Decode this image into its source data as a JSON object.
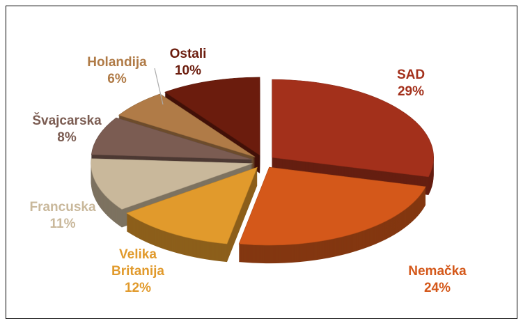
{
  "chart_data": {
    "type": "pie",
    "categories": [
      "SAD",
      "Nemačka",
      "Velika Britanija",
      "Francuska",
      "Švajcarska",
      "Holandija",
      "Ostali"
    ],
    "values": [
      29,
      24,
      12,
      11,
      8,
      6,
      10
    ],
    "value_labels": [
      "29%",
      "24%",
      "12%",
      "11%",
      "8%",
      "6%",
      "10%"
    ],
    "colors": [
      "#a3301b",
      "#d4581a",
      "#e19a2c",
      "#c9b89b",
      "#7b5c52",
      "#b07b47",
      "#6b1c0d"
    ]
  }
}
